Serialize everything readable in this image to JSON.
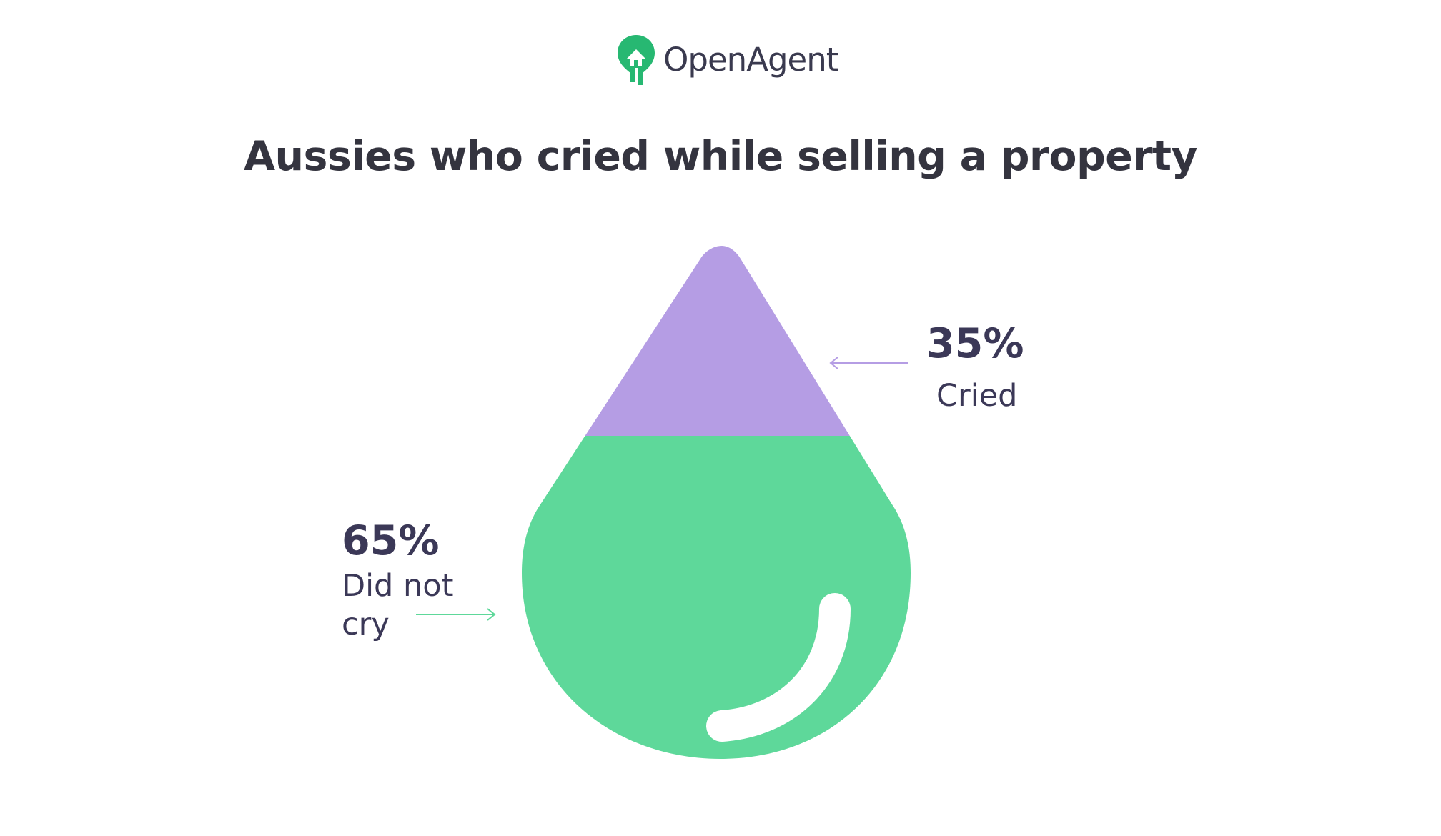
{
  "brand": {
    "name": "OpenAgent",
    "logo_icon": "house-pin-icon"
  },
  "title": "Aussies who cried while selling a property",
  "colors": {
    "cried": "#b59de4",
    "did_not_cry": "#5ed89a",
    "text": "#3b3857",
    "brand_green": "#27b872"
  },
  "chart_data": {
    "type": "pie",
    "title": "Aussies who cried while selling a property",
    "unit": "%",
    "slices": [
      {
        "value_label": "35%",
        "label": "Cried",
        "value": 35,
        "color": "#b59de4"
      },
      {
        "value_label": "65%",
        "label_lines": [
          "Did not",
          "cry"
        ],
        "value": 65,
        "color": "#5ed89a"
      }
    ]
  }
}
